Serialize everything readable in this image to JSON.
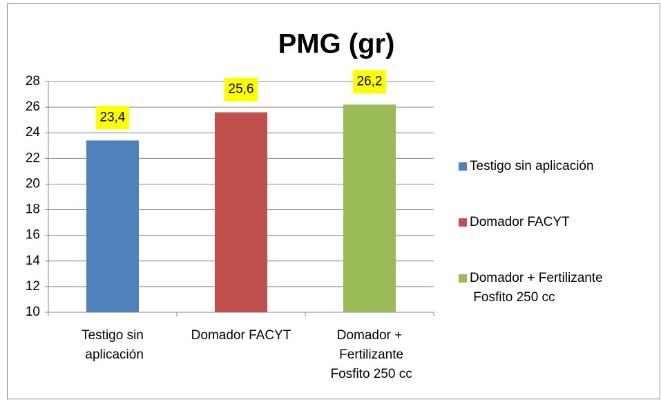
{
  "chart_data": {
    "type": "bar",
    "title": "PMG (gr)",
    "categories": [
      "Testigo sin aplicación",
      "Domador FACYT",
      "Domador + Fertilizante Fosfito 250 cc"
    ],
    "values": [
      23.4,
      25.6,
      26.2
    ],
    "value_labels": [
      "23,4",
      "25,6",
      "26,2"
    ],
    "colors": [
      "#4f81bd",
      "#c0504d",
      "#9bbb59"
    ],
    "ylim": [
      10,
      28
    ],
    "yticks": [
      10,
      12,
      14,
      16,
      18,
      20,
      22,
      24,
      26,
      28
    ],
    "grid": true,
    "legend": "right"
  }
}
